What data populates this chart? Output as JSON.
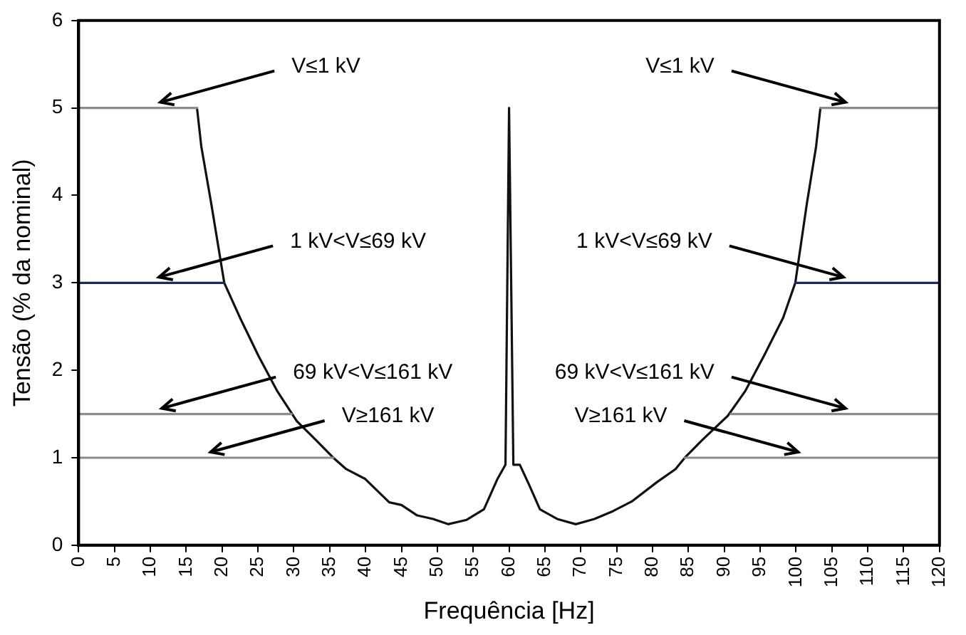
{
  "chart_data": {
    "type": "line",
    "xlabel": "Frequência [Hz]",
    "ylabel": "Tensão (% da nominal)",
    "xlim": [
      0,
      120
    ],
    "xticks": [
      0,
      5,
      10,
      15,
      20,
      25,
      30,
      35,
      40,
      45,
      50,
      55,
      60,
      65,
      70,
      75,
      80,
      85,
      90,
      95,
      100,
      105,
      110,
      115,
      120
    ],
    "ylim": [
      0,
      6
    ],
    "yticks": [
      0,
      1,
      2,
      3,
      4,
      5,
      6
    ],
    "grid": false,
    "legend": false,
    "marker": "none",
    "line_style": "solid",
    "series": [
      {
        "color": "#8c8c8c",
        "x": [
          0,
          16.5,
          60,
          103.4,
          120
        ],
        "values": [
          5,
          5,
          null,
          5,
          5
        ]
      },
      {
        "color": "#1f2a5c",
        "x": [
          0,
          20.3,
          60,
          99.9,
          120
        ],
        "values": [
          3,
          3,
          null,
          3,
          3
        ]
      },
      {
        "color": "#8c8c8c",
        "x": [
          0,
          29.7,
          60,
          90.9,
          120
        ],
        "values": [
          1.5,
          1.5,
          null,
          1.5,
          1.5
        ]
      },
      {
        "color": "#8c8c8c",
        "x": [
          0,
          35.5,
          60,
          84.5,
          120
        ],
        "values": [
          1,
          1,
          null,
          1,
          1
        ]
      },
      {
        "color": "#111111",
        "x": [
          16.5,
          17.1,
          18.5,
          20.3,
          22.5,
          25.1,
          27.7,
          30.4,
          33.1,
          35.5,
          37.3,
          39.9,
          43.3,
          45,
          47.2,
          49.4,
          51.5,
          54.1,
          56.5,
          58.4,
          59.5,
          60,
          60.6,
          61.5,
          62.8,
          64.3,
          66.7,
          69.3,
          71.9,
          74.5,
          77.1,
          80.6,
          83.2,
          84.5,
          86.9,
          90.5,
          92.9,
          95.5,
          98.2,
          99.9,
          101.5,
          102.8,
          103.4
        ],
        "values": [
          5,
          4.56,
          3.9,
          3,
          2.6,
          2.16,
          1.76,
          1.42,
          1.2,
          1,
          0.87,
          0.76,
          0.49,
          0.46,
          0.34,
          0.3,
          0.24,
          0.29,
          0.41,
          0.76,
          0.92,
          5,
          0.92,
          0.92,
          0.69,
          0.41,
          0.3,
          0.24,
          0.3,
          0.39,
          0.5,
          0.72,
          0.87,
          1,
          1.2,
          1.48,
          1.76,
          2.16,
          2.6,
          3,
          3.9,
          4.56,
          5
        ]
      }
    ],
    "annotations": [
      {
        "text": "V≤1 kV",
        "x": 11.4,
        "y": 5
      },
      {
        "text": "1 kV<V≤69 kV",
        "x": 11.2,
        "y": 3
      },
      {
        "text": "69 kV<V≤161 kV",
        "x": 11.6,
        "y": 1.5
      },
      {
        "text": "V≥161 kV",
        "x": 18.4,
        "y": 1
      },
      {
        "text": "V≤1 kV",
        "x": 106.9,
        "y": 5
      },
      {
        "text": "1 kV<V≤69 kV",
        "x": 106.6,
        "y": 3
      },
      {
        "text": "69 kV<V≤161 kV",
        "x": 106.9,
        "y": 1.5
      },
      {
        "text": "V≥161 kV",
        "x": 100.3,
        "y": 1
      }
    ]
  }
}
